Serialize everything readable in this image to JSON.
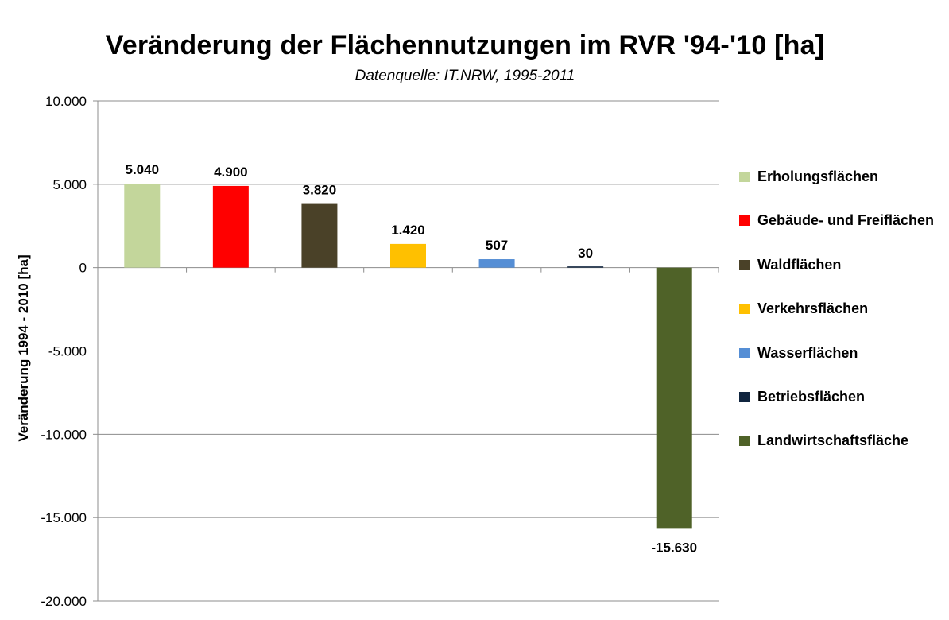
{
  "chart_data": {
    "type": "bar",
    "title": "Veränderung der Flächennutzungen im RVR '94-'10 [ha]",
    "subtitle": "Datenquelle: IT.NRW, 1995-2011",
    "xlabel": "",
    "ylabel": "Veränderung 1994 - 2010 [ha]",
    "ylim": [
      -20000,
      10000
    ],
    "y_ticks": [
      10000,
      5000,
      0,
      -5000,
      -10000,
      -15000,
      -20000
    ],
    "y_tick_labels": [
      "10.000",
      "5.000",
      "0",
      "-5.000",
      "-10.000",
      "-15.000",
      "-20.000"
    ],
    "grid": true,
    "legend_position": "right",
    "categories": [
      "Erholungsflächen",
      "Gebäude- und Freiflächen",
      "Waldflächen",
      "Verkehrsflächen",
      "Wasserflächen",
      "Betriebsflächen",
      "Landwirtschaftsfläche"
    ],
    "values": [
      5040,
      4900,
      3820,
      1420,
      507,
      30,
      -15630
    ],
    "data_labels": [
      "5.040",
      "4.900",
      "3.820",
      "1.420",
      "507",
      "30",
      "-15.630"
    ],
    "colors": [
      "#c3d69b",
      "#ff0000",
      "#4a4128",
      "#ffc000",
      "#558ed5",
      "#10253f",
      "#4f6228"
    ]
  }
}
